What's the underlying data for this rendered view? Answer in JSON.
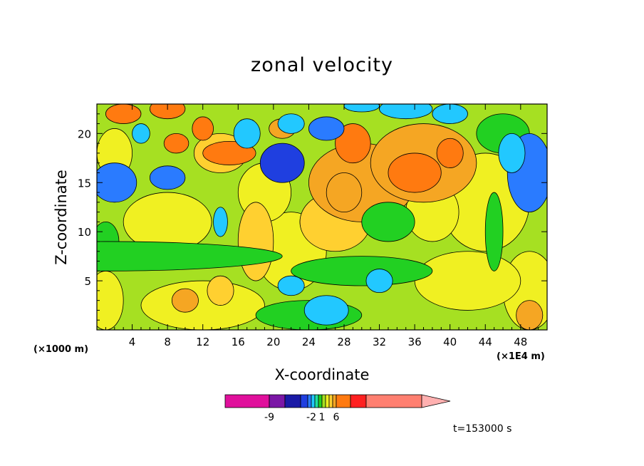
{
  "chart_data": {
    "type": "heatmap",
    "title": "zonal velocity",
    "xlabel": "X-coordinate",
    "ylabel": "Z-coordinate",
    "x_unit_left": "(×1000 m)",
    "x_unit_right": "(×1E4 m)",
    "xlim": [
      0,
      51
    ],
    "ylim": [
      0,
      23
    ],
    "x_ticks": [
      4,
      8,
      12,
      16,
      20,
      24,
      28,
      32,
      36,
      40,
      44,
      48
    ],
    "y_ticks": [
      5,
      10,
      15,
      20
    ],
    "time_label": "t=153000 s",
    "colorbar": {
      "tick_labels": [
        {
          "label": "-9",
          "value": -9
        },
        {
          "label": "-2",
          "value": -2
        },
        {
          "label": "1",
          "value": 1
        },
        {
          "label": "6",
          "value": 6
        }
      ],
      "levels": [
        -12,
        -9,
        -6,
        -4,
        -3,
        -2,
        -1,
        0,
        1,
        2,
        3,
        4,
        6,
        9,
        15
      ],
      "colors": [
        "#e0109c",
        "#7b17a6",
        "#1a1aa6",
        "#1f3fe0",
        "#2a7bff",
        "#22c8ff",
        "#22e0a0",
        "#22d022",
        "#a6e022",
        "#f0f022",
        "#ffd030",
        "#f5a623",
        "#ff7a10",
        "#ff2020",
        "#ff7f70",
        "#ffb0b0"
      ]
    },
    "field_blobs": [
      {
        "x": 8,
        "y": 11,
        "rx": 5,
        "ry": 3,
        "value": 1.5
      },
      {
        "x": 12,
        "y": 2.5,
        "rx": 7,
        "ry": 2.5,
        "value": 1.5
      },
      {
        "x": 2,
        "y": 18,
        "rx": 2,
        "ry": 2.5,
        "value": 1.5
      },
      {
        "x": 1,
        "y": 3,
        "rx": 2,
        "ry": 3,
        "value": 1.5
      },
      {
        "x": 49,
        "y": 4,
        "rx": 3,
        "ry": 4,
        "value": 1.5
      },
      {
        "x": 42,
        "y": 5,
        "rx": 6,
        "ry": 3,
        "value": 1.5
      },
      {
        "x": 44,
        "y": 13,
        "rx": 5,
        "ry": 5,
        "value": 1.5
      },
      {
        "x": 38,
        "y": 12,
        "rx": 3,
        "ry": 3,
        "value": 1.5
      },
      {
        "x": 22,
        "y": 8,
        "rx": 4,
        "ry": 4,
        "value": 1.5
      },
      {
        "x": 19,
        "y": 14,
        "rx": 3,
        "ry": 3,
        "value": 1.5
      },
      {
        "x": 26,
        "y": 11,
        "rx": 3,
        "ry": 2,
        "value": 1.5
      },
      {
        "x": 27,
        "y": 11,
        "rx": 4,
        "ry": 3,
        "value": 2.5
      },
      {
        "x": 30,
        "y": 15,
        "rx": 6,
        "ry": 4,
        "value": 3
      },
      {
        "x": 37,
        "y": 17,
        "rx": 6,
        "ry": 4,
        "value": 3.5
      },
      {
        "x": 18,
        "y": 9,
        "rx": 2,
        "ry": 4,
        "value": 2.5
      },
      {
        "x": 14,
        "y": 18,
        "rx": 3,
        "ry": 2,
        "value": 2
      },
      {
        "x": 14,
        "y": 4,
        "rx": 1.5,
        "ry": 1.5,
        "value": 2.5
      },
      {
        "x": 15,
        "y": 18,
        "rx": 3,
        "ry": 1.2,
        "value": 4.5
      },
      {
        "x": 12,
        "y": 20.5,
        "rx": 1.2,
        "ry": 1.2,
        "value": 5
      },
      {
        "x": 9,
        "y": 19,
        "rx": 1.4,
        "ry": 1,
        "value": 4
      },
      {
        "x": 36,
        "y": 16,
        "rx": 3,
        "ry": 2,
        "value": 5
      },
      {
        "x": 29,
        "y": 19,
        "rx": 2,
        "ry": 2,
        "value": 4.5
      },
      {
        "x": 40,
        "y": 18,
        "rx": 1.5,
        "ry": 1.5,
        "value": 5
      },
      {
        "x": 49,
        "y": 1.5,
        "rx": 1.5,
        "ry": 1.5,
        "value": 3.5
      },
      {
        "x": 8,
        "y": 22.5,
        "rx": 2,
        "ry": 1,
        "value": 5
      },
      {
        "x": 3,
        "y": 22,
        "rx": 2,
        "ry": 1,
        "value": 4
      },
      {
        "x": 21,
        "y": 20.5,
        "rx": 1.5,
        "ry": 1,
        "value": 3
      },
      {
        "x": 10,
        "y": 3,
        "rx": 1.5,
        "ry": 1.2,
        "value": 3
      },
      {
        "x": 28,
        "y": 14,
        "rx": 2,
        "ry": 2,
        "value": 3
      },
      {
        "x": 33,
        "y": 11,
        "rx": 3,
        "ry": 2,
        "value": -0.5
      },
      {
        "x": 45,
        "y": 10,
        "rx": 1,
        "ry": 4,
        "value": -0.3
      },
      {
        "x": 24,
        "y": 1.5,
        "rx": 6,
        "ry": 1.5,
        "value": -0.5
      },
      {
        "x": 30,
        "y": 6,
        "rx": 8,
        "ry": 1.5,
        "value": -0.5
      },
      {
        "x": 1,
        "y": 9,
        "rx": 1.5,
        "ry": 2,
        "value": -0.5
      },
      {
        "x": 46,
        "y": 20,
        "rx": 3,
        "ry": 2,
        "value": -0.5
      },
      {
        "x": 1,
        "y": 7.5,
        "rx": 20,
        "ry": 1.5,
        "value": -0.3
      },
      {
        "x": 26,
        "y": 2,
        "rx": 2.5,
        "ry": 1.5,
        "value": -2.2
      },
      {
        "x": 32,
        "y": 5,
        "rx": 1.5,
        "ry": 1.2,
        "value": -2.2
      },
      {
        "x": 22,
        "y": 4.5,
        "rx": 1.5,
        "ry": 1,
        "value": -2.2
      },
      {
        "x": 14,
        "y": 11,
        "rx": 0.8,
        "ry": 1.5,
        "value": -2.2
      },
      {
        "x": 2,
        "y": 15,
        "rx": 2.5,
        "ry": 2,
        "value": -4
      },
      {
        "x": 8,
        "y": 15.5,
        "rx": 2,
        "ry": 1.2,
        "value": -3.5
      },
      {
        "x": 21,
        "y": 17,
        "rx": 2.5,
        "ry": 2,
        "value": -4.5
      },
      {
        "x": 17,
        "y": 20,
        "rx": 1.5,
        "ry": 1.5,
        "value": -3
      },
      {
        "x": 22,
        "y": 21,
        "rx": 1.5,
        "ry": 1,
        "value": -3
      },
      {
        "x": 26,
        "y": 20.5,
        "rx": 2,
        "ry": 1.2,
        "value": -3.5
      },
      {
        "x": 49,
        "y": 16,
        "rx": 2.5,
        "ry": 4,
        "value": -3.5
      },
      {
        "x": 47,
        "y": 18,
        "rx": 1.5,
        "ry": 2,
        "value": -2.2
      },
      {
        "x": 40,
        "y": 22,
        "rx": 2,
        "ry": 1,
        "value": -3
      },
      {
        "x": 35,
        "y": 22.5,
        "rx": 3,
        "ry": 1,
        "value": -2.2
      },
      {
        "x": 5,
        "y": 20,
        "rx": 1,
        "ry": 1,
        "value": -2.2
      },
      {
        "x": 30,
        "y": 22.8,
        "rx": 2,
        "ry": 0.6,
        "value": -2.2
      }
    ]
  }
}
